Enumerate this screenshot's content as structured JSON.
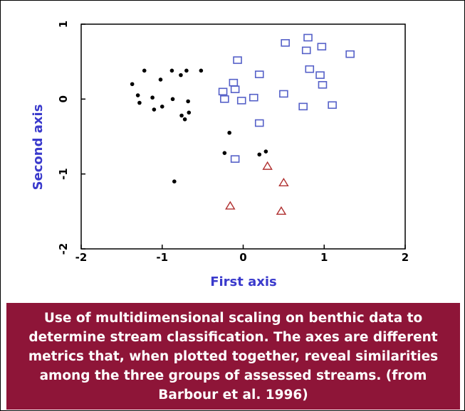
{
  "caption": "Use of multidimensional scaling on benthic data to determine stream classification.  The axes are different metrics that, when plotted together, reveal similarities among the three groups of assessed streams. (from Barbour et al. 1996)",
  "colors": {
    "axis_title": "#3a3acc",
    "caption_bg": "#8e1538",
    "series_dot": "#000000",
    "series_square": "#5560c8",
    "series_triangle": "#b03030"
  },
  "chart_data": {
    "type": "scatter",
    "xlabel": "First axis",
    "ylabel": "Second axis",
    "xlim": [
      -2,
      2
    ],
    "ylim": [
      -2,
      1
    ],
    "x_ticks": [
      "-2",
      "-1",
      "0",
      "1",
      "2"
    ],
    "y_ticks": [
      "1",
      "0",
      "-1",
      "-2"
    ],
    "x_tick_values": [
      -2,
      -1,
      0,
      1,
      2
    ],
    "y_tick_values": [
      1,
      0,
      -1,
      -2
    ],
    "grid": false,
    "series": [
      {
        "marker": "dot",
        "points": [
          [
            -1.22,
            0.38
          ],
          [
            -1.37,
            0.2
          ],
          [
            -1.3,
            0.05
          ],
          [
            -1.28,
            -0.05
          ],
          [
            -1.12,
            0.02
          ],
          [
            -1.1,
            -0.14
          ],
          [
            -1.0,
            -0.1
          ],
          [
            -1.02,
            0.26
          ],
          [
            -0.88,
            0.38
          ],
          [
            -0.87,
            0.0
          ],
          [
            -0.77,
            0.32
          ],
          [
            -0.7,
            0.38
          ],
          [
            -0.52,
            0.38
          ],
          [
            -0.68,
            -0.03
          ],
          [
            -0.76,
            -0.22
          ],
          [
            -0.72,
            -0.27
          ],
          [
            -0.67,
            -0.18
          ],
          [
            -0.17,
            -0.45
          ],
          [
            -0.23,
            -0.72
          ],
          [
            0.2,
            -0.74
          ],
          [
            0.28,
            -0.7
          ],
          [
            -0.85,
            -1.1
          ]
        ]
      },
      {
        "marker": "square",
        "points": [
          [
            -0.07,
            0.52
          ],
          [
            -0.12,
            0.22
          ],
          [
            -0.1,
            0.13
          ],
          [
            -0.25,
            0.1
          ],
          [
            -0.23,
            0.0
          ],
          [
            -0.02,
            -0.02
          ],
          [
            0.13,
            0.02
          ],
          [
            0.2,
            0.33
          ],
          [
            0.2,
            -0.32
          ],
          [
            0.5,
            0.07
          ],
          [
            0.52,
            0.75
          ],
          [
            0.8,
            0.82
          ],
          [
            0.78,
            0.65
          ],
          [
            0.97,
            0.7
          ],
          [
            1.32,
            0.6
          ],
          [
            0.82,
            0.4
          ],
          [
            0.95,
            0.32
          ],
          [
            0.98,
            0.19
          ],
          [
            0.74,
            -0.1
          ],
          [
            1.1,
            -0.08
          ],
          [
            -0.1,
            -0.8
          ]
        ]
      },
      {
        "marker": "triangle",
        "points": [
          [
            0.3,
            -0.9
          ],
          [
            0.5,
            -1.12
          ],
          [
            -0.16,
            -1.43
          ],
          [
            0.47,
            -1.5
          ]
        ]
      }
    ]
  }
}
